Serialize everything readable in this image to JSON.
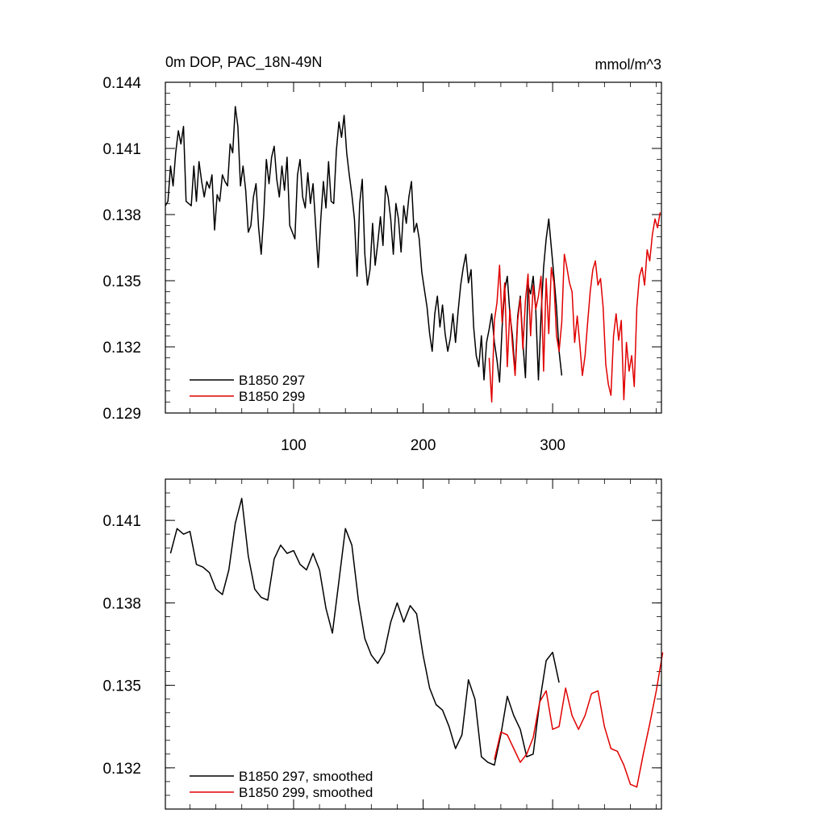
{
  "chart_data": [
    {
      "type": "line",
      "title": "0m DOP, PAC_18N-49N",
      "units": "mmol/m^3",
      "xlim": [
        1,
        384
      ],
      "ylim": [
        0.129,
        0.144
      ],
      "xticks": [
        100,
        200,
        300
      ],
      "xtick_labels": [
        "100",
        "200",
        "300"
      ],
      "yticks": [
        0.129,
        0.132,
        0.135,
        0.138,
        0.141,
        0.144
      ],
      "ytick_labels": [
        "0.129",
        "0.132",
        "0.135",
        "0.138",
        "0.141",
        "0.144"
      ],
      "legend_position": "bottom-left",
      "series": [
        {
          "name": "B1850 297",
          "color": "#000000",
          "x": [
            1,
            3,
            5,
            7,
            9,
            11,
            13,
            15,
            17,
            19,
            21,
            23,
            25,
            27,
            29,
            31,
            33,
            35,
            37,
            39,
            41,
            43,
            45,
            47,
            49,
            51,
            53,
            55,
            57,
            59,
            61,
            63,
            65,
            67,
            69,
            71,
            73,
            75,
            77,
            79,
            81,
            83,
            85,
            87,
            89,
            91,
            93,
            95,
            97,
            99,
            101,
            103,
            105,
            107,
            109,
            111,
            113,
            115,
            117,
            119,
            121,
            123,
            125,
            127,
            129,
            131,
            133,
            135,
            137,
            139,
            141,
            143,
            145,
            147,
            149,
            151,
            153,
            155,
            157,
            159,
            161,
            163,
            165,
            167,
            169,
            171,
            173,
            175,
            177,
            179,
            181,
            183,
            185,
            187,
            189,
            191,
            193,
            195,
            197,
            199,
            201,
            203,
            205,
            207,
            209,
            211,
            213,
            215,
            217,
            219,
            221,
            223,
            225,
            227,
            229,
            231,
            233,
            235,
            237,
            239,
            241,
            243,
            245,
            247,
            249,
            251,
            253,
            255,
            257,
            259,
            261,
            263,
            265,
            267,
            269,
            271,
            273,
            275,
            277,
            279,
            281,
            283,
            285,
            287,
            289,
            291,
            293,
            295,
            297,
            299,
            301,
            303,
            305,
            307
          ],
          "values": [
            0.1384,
            0.1386,
            0.1402,
            0.1393,
            0.1408,
            0.1418,
            0.1412,
            0.142,
            0.1386,
            0.1385,
            0.1384,
            0.1402,
            0.1386,
            0.1404,
            0.1395,
            0.1388,
            0.1395,
            0.1392,
            0.1398,
            0.1373,
            0.1389,
            0.1386,
            0.1398,
            0.1395,
            0.1393,
            0.1412,
            0.1408,
            0.1429,
            0.142,
            0.1393,
            0.1402,
            0.1391,
            0.1372,
            0.1375,
            0.1388,
            0.1394,
            0.1374,
            0.1362,
            0.138,
            0.1405,
            0.1394,
            0.1406,
            0.1411,
            0.1396,
            0.1388,
            0.1402,
            0.1391,
            0.1406,
            0.1375,
            0.1372,
            0.1369,
            0.1398,
            0.1405,
            0.1388,
            0.1383,
            0.1399,
            0.1385,
            0.1394,
            0.1375,
            0.1356,
            0.1378,
            0.1395,
            0.1383,
            0.1404,
            0.1386,
            0.1385,
            0.1409,
            0.1422,
            0.1415,
            0.1425,
            0.1408,
            0.1398,
            0.1389,
            0.1378,
            0.1352,
            0.1385,
            0.1396,
            0.1362,
            0.1348,
            0.1355,
            0.1376,
            0.1357,
            0.1367,
            0.1379,
            0.1366,
            0.1393,
            0.1388,
            0.1378,
            0.1362,
            0.1385,
            0.1378,
            0.1363,
            0.1384,
            0.1376,
            0.1388,
            0.1395,
            0.1372,
            0.1376,
            0.1369,
            0.1354,
            0.1346,
            0.1338,
            0.1326,
            0.1318,
            0.1335,
            0.1343,
            0.1329,
            0.1339,
            0.1326,
            0.1318,
            0.1324,
            0.1335,
            0.1322,
            0.1336,
            0.1348,
            0.1356,
            0.1362,
            0.1349,
            0.1355,
            0.1329,
            0.1316,
            0.1311,
            0.1325,
            0.1305,
            0.1322,
            0.1328,
            0.1335,
            0.1322,
            0.1314,
            0.1304,
            0.1329,
            0.1346,
            0.1352,
            0.1335,
            0.1325,
            0.1308,
            0.1334,
            0.1343,
            0.1322,
            0.1306,
            0.1348,
            0.1344,
            0.1352,
            0.1337,
            0.1305,
            0.1334,
            0.1356,
            0.1369,
            0.1378,
            0.1365,
            0.1352,
            0.1338,
            0.1318,
            0.1307
          ]
        },
        {
          "name": "B1850 299",
          "color": "#e00000",
          "x": [
            251,
            253,
            255,
            257,
            259,
            261,
            263,
            265,
            267,
            269,
            271,
            273,
            275,
            277,
            279,
            281,
            283,
            285,
            287,
            289,
            291,
            293,
            295,
            297,
            299,
            301,
            303,
            305,
            307,
            309,
            311,
            313,
            315,
            317,
            319,
            321,
            323,
            325,
            327,
            329,
            331,
            333,
            335,
            337,
            339,
            341,
            343,
            345,
            347,
            349,
            351,
            353,
            355,
            357,
            359,
            361,
            363,
            365,
            367,
            369,
            371,
            373,
            375,
            377,
            379,
            381,
            383
          ],
          "values": [
            0.1315,
            0.1295,
            0.1332,
            0.134,
            0.1357,
            0.1331,
            0.1349,
            0.1311,
            0.1337,
            0.1321,
            0.1307,
            0.1332,
            0.1342,
            0.1319,
            0.1341,
            0.1353,
            0.1325,
            0.1348,
            0.1337,
            0.1343,
            0.1352,
            0.1309,
            0.1351,
            0.1326,
            0.1356,
            0.1349,
            0.1325,
            0.1318,
            0.1331,
            0.1362,
            0.1356,
            0.1349,
            0.1345,
            0.1322,
            0.1334,
            0.1321,
            0.1307,
            0.1316,
            0.1331,
            0.1345,
            0.1355,
            0.1359,
            0.1348,
            0.1351,
            0.1338,
            0.1312,
            0.1303,
            0.1298,
            0.1325,
            0.1335,
            0.1323,
            0.1332,
            0.1296,
            0.1322,
            0.1309,
            0.1316,
            0.1302,
            0.1338,
            0.1352,
            0.1356,
            0.1348,
            0.1364,
            0.1359,
            0.1371,
            0.1378,
            0.1374,
            0.1381
          ]
        }
      ]
    },
    {
      "type": "line",
      "xlim": [
        1,
        384
      ],
      "ylim": [
        0.1305,
        0.1425
      ],
      "xticks": [
        100,
        200,
        300
      ],
      "yticks": [
        0.132,
        0.135,
        0.138,
        0.141
      ],
      "ytick_labels": [
        "0.132",
        "0.135",
        "0.138",
        "0.141"
      ],
      "legend_position": "bottom-left",
      "series": [
        {
          "name": "B1850 297, smoothed",
          "color": "#000000",
          "x": [
            5,
            10,
            15,
            20,
            25,
            30,
            35,
            40,
            45,
            50,
            55,
            60,
            65,
            70,
            75,
            80,
            85,
            90,
            95,
            100,
            105,
            110,
            115,
            120,
            125,
            130,
            135,
            140,
            145,
            150,
            155,
            160,
            165,
            170,
            175,
            180,
            185,
            190,
            195,
            200,
            205,
            210,
            215,
            220,
            225,
            230,
            235,
            240,
            245,
            250,
            255,
            260,
            265,
            270,
            275,
            280,
            285,
            290,
            295,
            300,
            305
          ],
          "values": [
            0.1398,
            0.1407,
            0.1405,
            0.1406,
            0.1394,
            0.1393,
            0.1391,
            0.1385,
            0.1383,
            0.1392,
            0.1409,
            0.1418,
            0.1397,
            0.1385,
            0.1382,
            0.1381,
            0.1396,
            0.1401,
            0.1398,
            0.1399,
            0.1394,
            0.1392,
            0.1398,
            0.1392,
            0.1378,
            0.1369,
            0.1388,
            0.1407,
            0.1401,
            0.1381,
            0.1367,
            0.1361,
            0.1358,
            0.1362,
            0.1373,
            0.138,
            0.1373,
            0.1379,
            0.1376,
            0.1361,
            0.1349,
            0.1343,
            0.1341,
            0.1335,
            0.1327,
            0.1332,
            0.1352,
            0.1345,
            0.1324,
            0.1322,
            0.1321,
            0.1332,
            0.1346,
            0.1339,
            0.1334,
            0.1324,
            0.1325,
            0.1344,
            0.1359,
            0.1362,
            0.1351
          ]
        },
        {
          "name": "B1850 299, smoothed",
          "color": "#e00000",
          "x": [
            255,
            260,
            265,
            270,
            275,
            280,
            285,
            290,
            295,
            300,
            305,
            310,
            315,
            320,
            325,
            330,
            335,
            340,
            345,
            350,
            355,
            360,
            365,
            370,
            375,
            380,
            385
          ],
          "values": [
            0.1323,
            0.1333,
            0.1332,
            0.1327,
            0.1322,
            0.1325,
            0.1331,
            0.1344,
            0.1348,
            0.1334,
            0.1335,
            0.1349,
            0.1339,
            0.1334,
            0.1339,
            0.1347,
            0.1348,
            0.1335,
            0.1327,
            0.1326,
            0.1321,
            0.1314,
            0.1313,
            0.1325,
            0.1336,
            0.1348,
            0.1362
          ]
        }
      ]
    }
  ]
}
